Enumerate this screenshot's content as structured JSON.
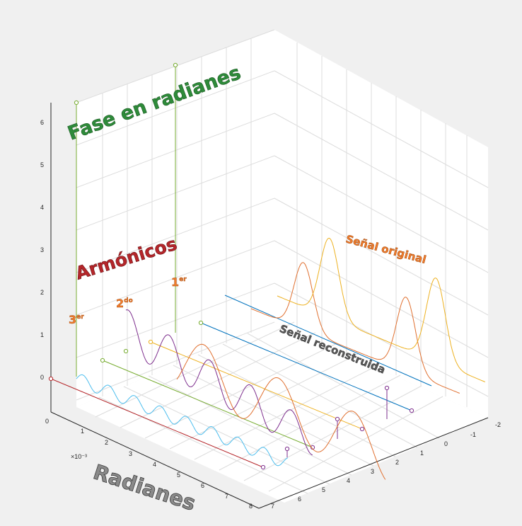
{
  "chart_data": {
    "type": "line",
    "title": "",
    "axes": {
      "x": {
        "ticks": [
          "-2",
          "-1",
          "0",
          "1",
          "2",
          "3",
          "4",
          "5",
          "6",
          "7"
        ]
      },
      "y": {
        "ticks": [
          "0",
          "1",
          "2",
          "3",
          "4",
          "5",
          "6",
          "7",
          "8"
        ],
        "exponent": "×10⁻³"
      },
      "z": {
        "ticks": [
          "0",
          "1",
          "2",
          "3",
          "4",
          "5",
          "6"
        ]
      }
    },
    "grid": true,
    "annotations": {
      "fase": "Fase en radianes",
      "armonicos": "Armónicos",
      "radianes": "Radianes",
      "senal_original": "Señal original",
      "senal_reconstruida": "Señal reconstruida",
      "primero": "1",
      "primero_sup": "er",
      "segundo": "2",
      "segundo_sup": "do",
      "tercero": "3",
      "tercero_sup": "er"
    },
    "series": [
      {
        "color": "#e07030",
        "shape": "two pulses (original, back)"
      },
      {
        "color": "#edb120",
        "shape": "two pulses (original, front)"
      },
      {
        "color": "#0072bd",
        "shape": "baseline"
      },
      {
        "color": "#e07030",
        "shape": "reconstructed wave"
      },
      {
        "color": "#7e2f8e",
        "shape": "3rd harmonic wave"
      },
      {
        "color": "#4dbeee",
        "shape": "high harmonic wave"
      }
    ],
    "phase_stems": [
      {
        "label": "1er",
        "value": 6.6,
        "color": "#77ac30"
      },
      {
        "label": "3er",
        "value": 6.2,
        "color": "#77ac30"
      },
      {
        "label": "armonico",
        "value": 0.9,
        "color": "#7e2f8e"
      }
    ]
  }
}
